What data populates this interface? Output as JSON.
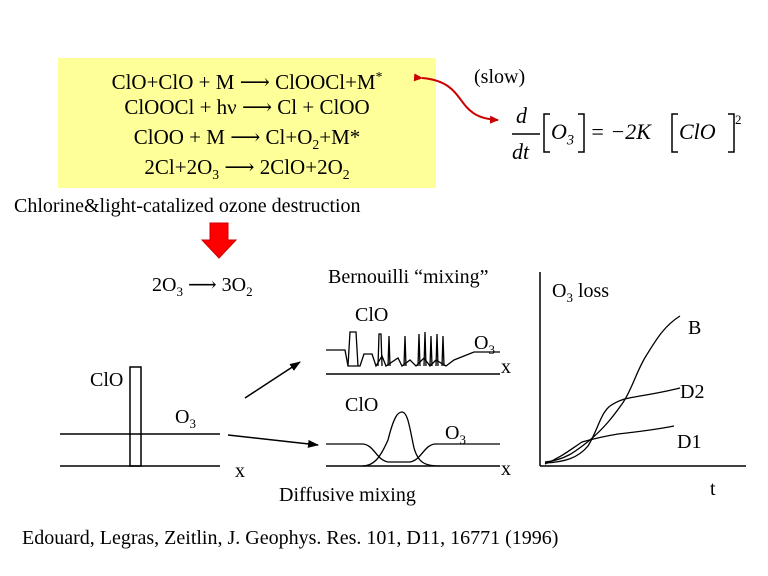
{
  "reactions": {
    "r1_left": "ClO+ClO + M",
    "r1_right": "ClOOCl+M",
    "r1_sup": "*",
    "r2_left": "ClOOCl + hν",
    "r2_right": "Cl + ClOO",
    "r3_left": "ClOO + M",
    "r3_right": "Cl+O",
    "r3_sub": "2",
    "r3_tail": "+M*",
    "r4_left": "2Cl+2O",
    "r4_sub": "3",
    "r4_right": "2ClO+2O",
    "r4_sub2": "2",
    "arrow": "⟶"
  },
  "slow_label": "(slow)",
  "rate_equation": {
    "d": "d",
    "dt": "dt",
    "o3": "O",
    "o3_sub": "3",
    "equals": "= −2K",
    "clo": "ClO",
    "power": "2"
  },
  "caption": "Chlorine&light-catalized ozone destruction",
  "net_reaction": {
    "left": "2O",
    "left_sub": "3",
    "arrow": "⟶",
    "right": "3O",
    "right_sub": "2"
  },
  "left_panel": {
    "clo": "ClO",
    "o3": "O",
    "o3_sub": "3",
    "x": "x"
  },
  "bernoulli_panel": {
    "title": "Bernouilli “mixing”",
    "clo": "ClO",
    "o3": "O",
    "o3_sub": "3",
    "x": "x"
  },
  "diffusive_panel": {
    "clo": "ClO",
    "o3": "O",
    "o3_sub": "3",
    "x": "x",
    "title": "Diffusive mixing"
  },
  "loss_chart": {
    "ylabel": "O",
    "ylabel_sub": "3",
    "ylabel_tail": " loss",
    "xlabel": "t",
    "series": [
      "B",
      "D2",
      "D1"
    ]
  },
  "citation": "Edouard, Legras, Zeitlin, J. Geophys. Res. 101, D11, 16771 (1996)",
  "colors": {
    "box": "#ffff99",
    "arrow_red": "#ff0000",
    "curved_arrow": "#cc0000"
  }
}
